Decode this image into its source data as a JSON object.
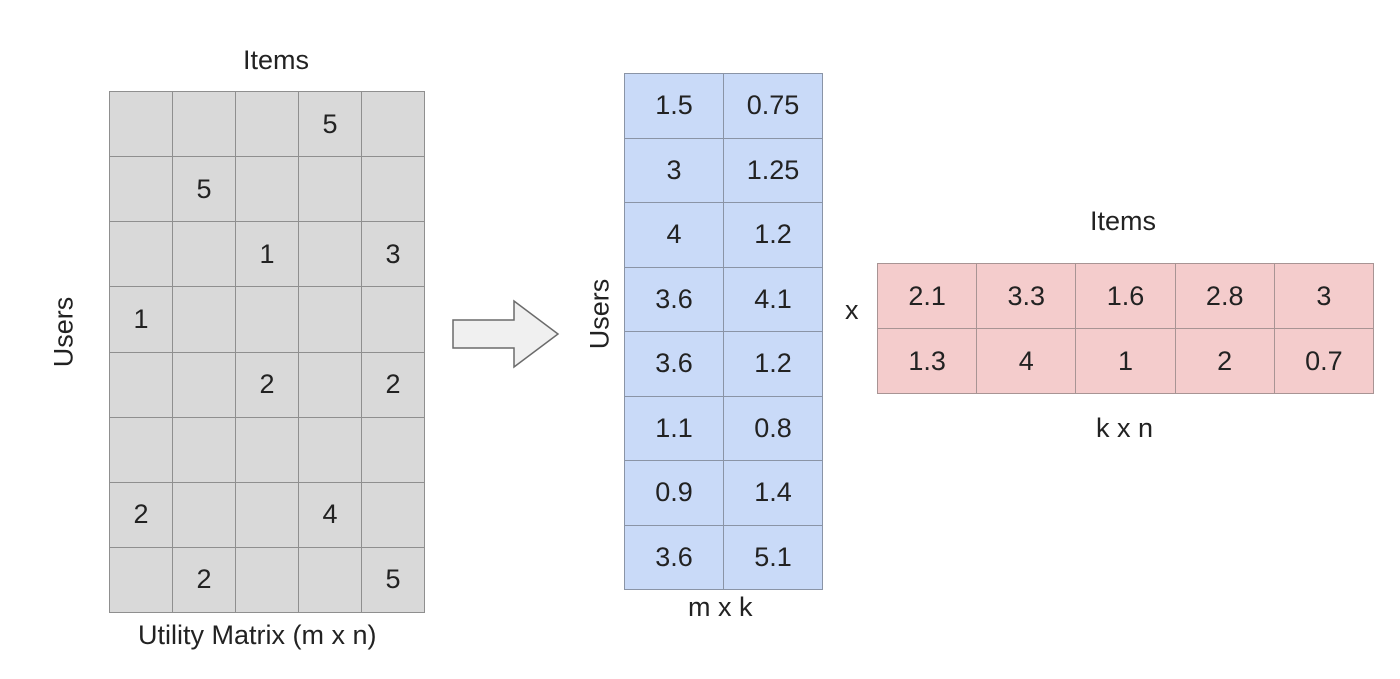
{
  "utility_matrix": {
    "top_label": "Items",
    "side_label": "Users",
    "bottom_label": "Utility Matrix (m x n)",
    "rows": [
      [
        "",
        "",
        "",
        "5",
        ""
      ],
      [
        "",
        "5",
        "",
        "",
        ""
      ],
      [
        "",
        "",
        "1",
        "",
        "3"
      ],
      [
        "1",
        "",
        "",
        "",
        ""
      ],
      [
        "",
        "",
        "2",
        "",
        "2"
      ],
      [
        "",
        "",
        "",
        "",
        ""
      ],
      [
        "2",
        "",
        "",
        "4",
        ""
      ],
      [
        "",
        "2",
        "",
        "",
        "5"
      ]
    ],
    "color": "#d9d9d9"
  },
  "arrow_icon": "right-arrow-icon",
  "user_matrix": {
    "side_label": "Users",
    "bottom_label": "m x k",
    "rows": [
      [
        "1.5",
        "0.75"
      ],
      [
        "3",
        "1.25"
      ],
      [
        "4",
        "1.2"
      ],
      [
        "3.6",
        "4.1"
      ],
      [
        "3.6",
        "1.2"
      ],
      [
        "1.1",
        "0.8"
      ],
      [
        "0.9",
        "1.4"
      ],
      [
        "3.6",
        "5.1"
      ]
    ],
    "color": "#c9daf8"
  },
  "multiply_sign": "x",
  "item_matrix": {
    "top_label": "Items",
    "bottom_label": "k x n",
    "rows": [
      [
        "2.1",
        "3.3",
        "1.6",
        "2.8",
        "3"
      ],
      [
        "1.3",
        "4",
        "1",
        "2",
        "0.7"
      ]
    ],
    "color": "#f4cccc"
  }
}
